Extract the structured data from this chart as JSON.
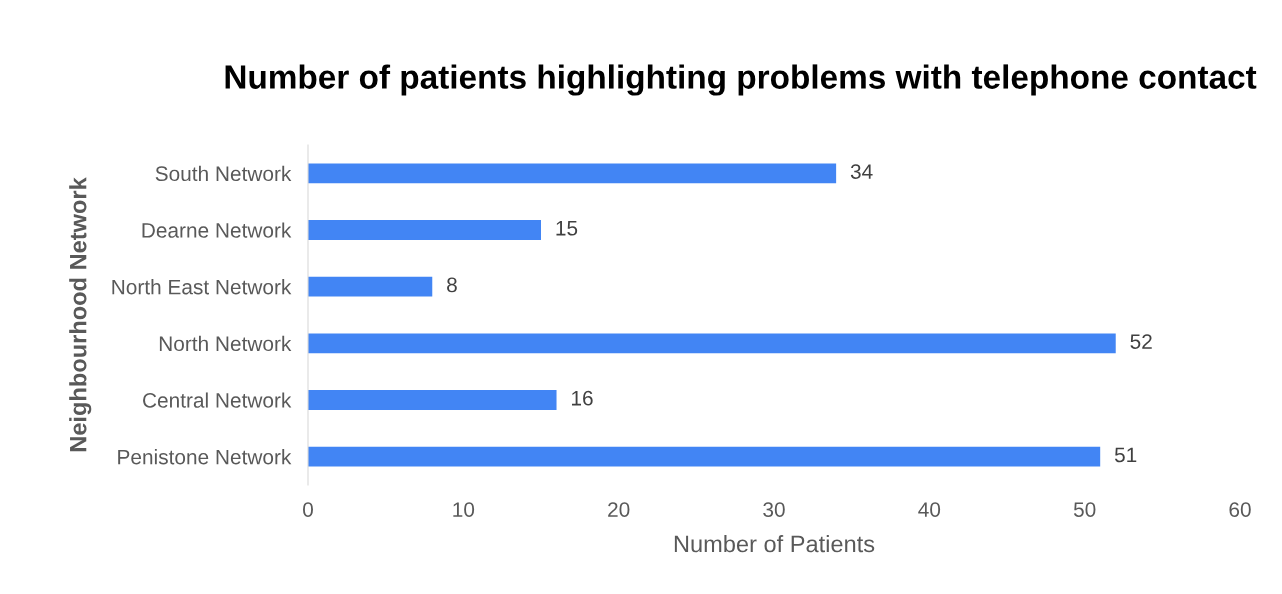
{
  "chart_data": {
    "type": "bar",
    "orientation": "horizontal",
    "title": "Number of patients highlighting problems with telephone contact",
    "xlabel": "Number of Patients",
    "ylabel": "Neighbourhood Network",
    "categories": [
      "South Network",
      "Dearne Network",
      "North East Network",
      "North Network",
      "Central Network",
      "Penistone Network"
    ],
    "values": [
      34,
      15,
      8,
      52,
      16,
      51
    ],
    "color": "#4285f4",
    "xlim": [
      0,
      60
    ],
    "xticks": [
      0,
      10,
      20,
      30,
      40,
      50,
      60
    ],
    "data_labels": true,
    "grid": false,
    "legend": false
  }
}
